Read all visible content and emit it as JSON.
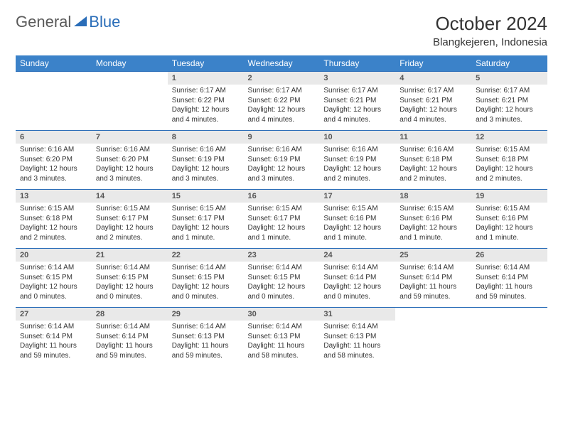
{
  "logo": {
    "text_gray": "General",
    "text_blue": "Blue"
  },
  "header": {
    "month_title": "October 2024",
    "location": "Blangkejeren, Indonesia"
  },
  "colors": {
    "header_bg": "#3b82c9",
    "row_border": "#2a6db8",
    "daynum_bg": "#e9e9e9",
    "text": "#333333"
  },
  "weekdays": [
    "Sunday",
    "Monday",
    "Tuesday",
    "Wednesday",
    "Thursday",
    "Friday",
    "Saturday"
  ],
  "weeks": [
    [
      null,
      null,
      {
        "n": "1",
        "sr": "Sunrise: 6:17 AM",
        "ss": "Sunset: 6:22 PM",
        "dl": "Daylight: 12 hours and 4 minutes."
      },
      {
        "n": "2",
        "sr": "Sunrise: 6:17 AM",
        "ss": "Sunset: 6:22 PM",
        "dl": "Daylight: 12 hours and 4 minutes."
      },
      {
        "n": "3",
        "sr": "Sunrise: 6:17 AM",
        "ss": "Sunset: 6:21 PM",
        "dl": "Daylight: 12 hours and 4 minutes."
      },
      {
        "n": "4",
        "sr": "Sunrise: 6:17 AM",
        "ss": "Sunset: 6:21 PM",
        "dl": "Daylight: 12 hours and 4 minutes."
      },
      {
        "n": "5",
        "sr": "Sunrise: 6:17 AM",
        "ss": "Sunset: 6:21 PM",
        "dl": "Daylight: 12 hours and 3 minutes."
      }
    ],
    [
      {
        "n": "6",
        "sr": "Sunrise: 6:16 AM",
        "ss": "Sunset: 6:20 PM",
        "dl": "Daylight: 12 hours and 3 minutes."
      },
      {
        "n": "7",
        "sr": "Sunrise: 6:16 AM",
        "ss": "Sunset: 6:20 PM",
        "dl": "Daylight: 12 hours and 3 minutes."
      },
      {
        "n": "8",
        "sr": "Sunrise: 6:16 AM",
        "ss": "Sunset: 6:19 PM",
        "dl": "Daylight: 12 hours and 3 minutes."
      },
      {
        "n": "9",
        "sr": "Sunrise: 6:16 AM",
        "ss": "Sunset: 6:19 PM",
        "dl": "Daylight: 12 hours and 3 minutes."
      },
      {
        "n": "10",
        "sr": "Sunrise: 6:16 AM",
        "ss": "Sunset: 6:19 PM",
        "dl": "Daylight: 12 hours and 2 minutes."
      },
      {
        "n": "11",
        "sr": "Sunrise: 6:16 AM",
        "ss": "Sunset: 6:18 PM",
        "dl": "Daylight: 12 hours and 2 minutes."
      },
      {
        "n": "12",
        "sr": "Sunrise: 6:15 AM",
        "ss": "Sunset: 6:18 PM",
        "dl": "Daylight: 12 hours and 2 minutes."
      }
    ],
    [
      {
        "n": "13",
        "sr": "Sunrise: 6:15 AM",
        "ss": "Sunset: 6:18 PM",
        "dl": "Daylight: 12 hours and 2 minutes."
      },
      {
        "n": "14",
        "sr": "Sunrise: 6:15 AM",
        "ss": "Sunset: 6:17 PM",
        "dl": "Daylight: 12 hours and 2 minutes."
      },
      {
        "n": "15",
        "sr": "Sunrise: 6:15 AM",
        "ss": "Sunset: 6:17 PM",
        "dl": "Daylight: 12 hours and 1 minute."
      },
      {
        "n": "16",
        "sr": "Sunrise: 6:15 AM",
        "ss": "Sunset: 6:17 PM",
        "dl": "Daylight: 12 hours and 1 minute."
      },
      {
        "n": "17",
        "sr": "Sunrise: 6:15 AM",
        "ss": "Sunset: 6:16 PM",
        "dl": "Daylight: 12 hours and 1 minute."
      },
      {
        "n": "18",
        "sr": "Sunrise: 6:15 AM",
        "ss": "Sunset: 6:16 PM",
        "dl": "Daylight: 12 hours and 1 minute."
      },
      {
        "n": "19",
        "sr": "Sunrise: 6:15 AM",
        "ss": "Sunset: 6:16 PM",
        "dl": "Daylight: 12 hours and 1 minute."
      }
    ],
    [
      {
        "n": "20",
        "sr": "Sunrise: 6:14 AM",
        "ss": "Sunset: 6:15 PM",
        "dl": "Daylight: 12 hours and 0 minutes."
      },
      {
        "n": "21",
        "sr": "Sunrise: 6:14 AM",
        "ss": "Sunset: 6:15 PM",
        "dl": "Daylight: 12 hours and 0 minutes."
      },
      {
        "n": "22",
        "sr": "Sunrise: 6:14 AM",
        "ss": "Sunset: 6:15 PM",
        "dl": "Daylight: 12 hours and 0 minutes."
      },
      {
        "n": "23",
        "sr": "Sunrise: 6:14 AM",
        "ss": "Sunset: 6:15 PM",
        "dl": "Daylight: 12 hours and 0 minutes."
      },
      {
        "n": "24",
        "sr": "Sunrise: 6:14 AM",
        "ss": "Sunset: 6:14 PM",
        "dl": "Daylight: 12 hours and 0 minutes."
      },
      {
        "n": "25",
        "sr": "Sunrise: 6:14 AM",
        "ss": "Sunset: 6:14 PM",
        "dl": "Daylight: 11 hours and 59 minutes."
      },
      {
        "n": "26",
        "sr": "Sunrise: 6:14 AM",
        "ss": "Sunset: 6:14 PM",
        "dl": "Daylight: 11 hours and 59 minutes."
      }
    ],
    [
      {
        "n": "27",
        "sr": "Sunrise: 6:14 AM",
        "ss": "Sunset: 6:14 PM",
        "dl": "Daylight: 11 hours and 59 minutes."
      },
      {
        "n": "28",
        "sr": "Sunrise: 6:14 AM",
        "ss": "Sunset: 6:14 PM",
        "dl": "Daylight: 11 hours and 59 minutes."
      },
      {
        "n": "29",
        "sr": "Sunrise: 6:14 AM",
        "ss": "Sunset: 6:13 PM",
        "dl": "Daylight: 11 hours and 59 minutes."
      },
      {
        "n": "30",
        "sr": "Sunrise: 6:14 AM",
        "ss": "Sunset: 6:13 PM",
        "dl": "Daylight: 11 hours and 58 minutes."
      },
      {
        "n": "31",
        "sr": "Sunrise: 6:14 AM",
        "ss": "Sunset: 6:13 PM",
        "dl": "Daylight: 11 hours and 58 minutes."
      },
      null,
      null
    ]
  ]
}
